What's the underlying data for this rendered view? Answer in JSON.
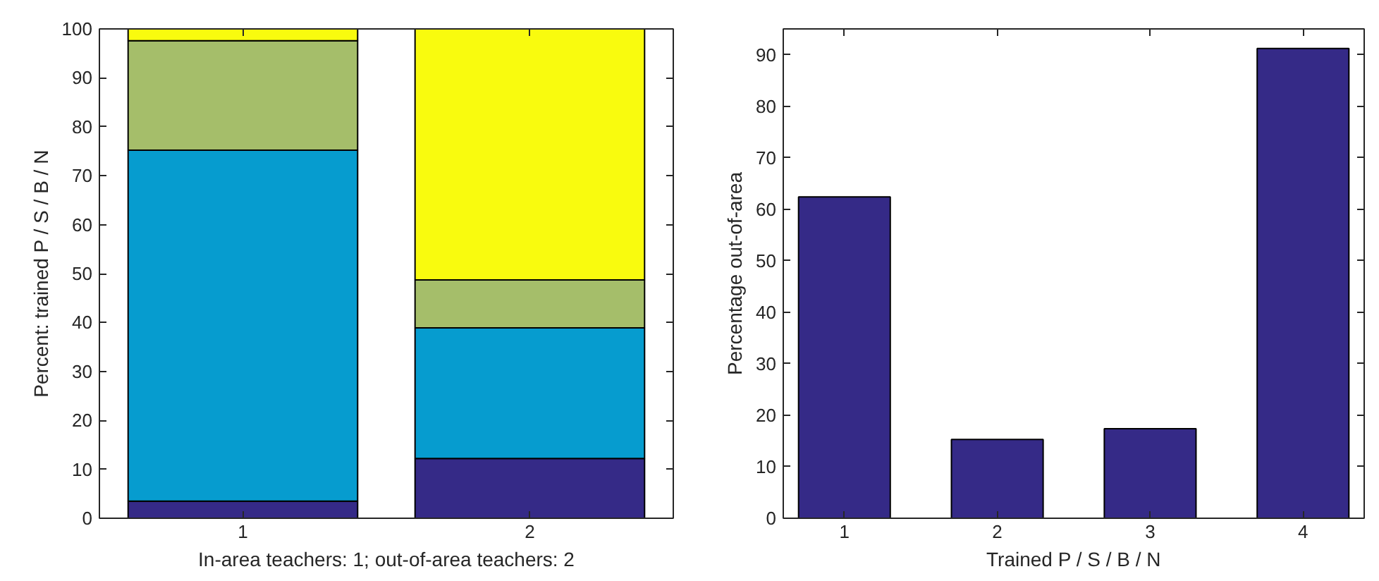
{
  "chart_data": [
    {
      "type": "bar",
      "stacked": true,
      "categories": [
        "1",
        "2"
      ],
      "xlabel": "In-area teachers: 1; out-of-area teachers: 2",
      "ylabel": "Percent: trained P / S / B / N",
      "ylim": [
        0,
        100
      ],
      "yticks": [
        0,
        10,
        20,
        30,
        40,
        50,
        60,
        70,
        80,
        90,
        100
      ],
      "grid": false,
      "series": [
        {
          "color": "#352a87",
          "values": [
            3.5,
            12.2
          ]
        },
        {
          "color": "#069ccf",
          "values": [
            71.7,
            26.7
          ]
        },
        {
          "color": "#a5be6a",
          "values": [
            22.4,
            9.8
          ]
        },
        {
          "color": "#f9fb0e",
          "values": [
            2.4,
            51.3
          ]
        }
      ]
    },
    {
      "type": "bar",
      "categories": [
        "1",
        "2",
        "3",
        "4"
      ],
      "xlabel": "Trained P / S / B / N",
      "ylabel": "Percentage out-of-area",
      "ylim": [
        0,
        95
      ],
      "yticks": [
        0,
        10,
        20,
        30,
        40,
        50,
        60,
        70,
        80,
        90
      ],
      "grid": false,
      "color": "#352a87",
      "values": [
        62.4,
        15.3,
        17.4,
        91.2
      ]
    }
  ]
}
